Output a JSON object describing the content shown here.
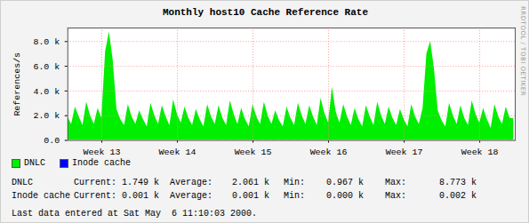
{
  "chart_data": {
    "type": "area",
    "title": "Monthly host10 Cache Reference Rate",
    "y_label": "References/s",
    "watermark": "RRDTOOL / TOBI OETIKER",
    "footer": "Last data entered at Sat May  6 11:10:03 2000.",
    "x": [
      13.05,
      13.1,
      13.15,
      13.2,
      13.25,
      13.3,
      13.35,
      13.4,
      13.45,
      13.5,
      13.55,
      13.6,
      13.65,
      13.7,
      13.75,
      13.8,
      13.85,
      13.9,
      13.95,
      14,
      14.05,
      14.1,
      14.15,
      14.2,
      14.25,
      14.3,
      14.35,
      14.4,
      14.45,
      14.5,
      14.55,
      14.6,
      14.65,
      14.7,
      14.75,
      14.8,
      14.85,
      14.9,
      14.95,
      15,
      15.05,
      15.1,
      15.15,
      15.2,
      15.25,
      15.3,
      15.35,
      15.4,
      15.45,
      15.5,
      15.55,
      15.6,
      15.65,
      15.7,
      15.75,
      15.8,
      15.85,
      15.9,
      15.95,
      16,
      16.05,
      16.1,
      16.15,
      16.2,
      16.25,
      16.3,
      16.35,
      16.4,
      16.45,
      16.5,
      16.55,
      16.6,
      16.65,
      16.7,
      16.75,
      16.8,
      16.85,
      16.9,
      16.95,
      17,
      17.05,
      17.1,
      17.15,
      17.2,
      17.25,
      17.3,
      17.35,
      17.4,
      17.45,
      17.5,
      17.55,
      17.6,
      17.65,
      17.7,
      17.75,
      17.8,
      17.85,
      17.9,
      17.95,
      18,
      18.05,
      18.1,
      18.15,
      18.2,
      18.25,
      18.3,
      18.35,
      18.4,
      18.45,
      18.5,
      18.55,
      18.6,
      18.65,
      18.7,
      18.75,
      18.8,
      18.85,
      18.9,
      18.95
    ],
    "series": [
      {
        "name": "DNLC",
        "color": "#00ee00",
        "values": [
          1900,
          1300,
          2700,
          1900,
          1200,
          3100,
          2000,
          1300,
          2600,
          1800,
          7200,
          8773,
          6500,
          2500,
          1700,
          1200,
          2900,
          1900,
          1300,
          2400,
          1700,
          1100,
          3000,
          2000,
          1300,
          2800,
          1900,
          1200,
          3300,
          2100,
          1400,
          2700,
          1800,
          1200,
          2500,
          1700,
          1100,
          2900,
          1900,
          1300,
          2800,
          1800,
          1200,
          3200,
          2100,
          1300,
          2600,
          1700,
          1100,
          2900,
          1900,
          1300,
          3100,
          2000,
          1300,
          2400,
          1600,
          1100,
          2700,
          1800,
          1200,
          3000,
          2000,
          1300,
          2800,
          1900,
          1200,
          3400,
          2200,
          1400,
          4300,
          2300,
          1400,
          2900,
          1900,
          1200,
          2600,
          1700,
          1100,
          2800,
          1900,
          1200,
          3100,
          2000,
          1300,
          2700,
          1800,
          1200,
          2500,
          1700,
          1100,
          2900,
          1900,
          1300,
          2600,
          7000,
          8000,
          5800,
          2400,
          1600,
          1100,
          3000,
          2000,
          1300,
          2800,
          1800,
          1200,
          3200,
          2100,
          1400,
          2600,
          1700,
          967,
          2900,
          1900,
          1300,
          2700,
          1800,
          1749
        ]
      },
      {
        "name": "Inode cache",
        "color": "#0000ff",
        "values": [
          1,
          1,
          1,
          1,
          1,
          1,
          1,
          1,
          1,
          1,
          2,
          2,
          1,
          1,
          1,
          1,
          1,
          1,
          1,
          1,
          1,
          1,
          1,
          1,
          1,
          1,
          1,
          1,
          1,
          1,
          1,
          1,
          1,
          1,
          1,
          1,
          0,
          1,
          1,
          1,
          1,
          1,
          1,
          1,
          1,
          1,
          1,
          1,
          1,
          1,
          1,
          1,
          1,
          1,
          1,
          1,
          1,
          1,
          1,
          1,
          1,
          1,
          1,
          1,
          1,
          1,
          1,
          1,
          1,
          1,
          1,
          1,
          1,
          1,
          1,
          1,
          1,
          1,
          1,
          1,
          1,
          1,
          1,
          1,
          1,
          1,
          1,
          1,
          1,
          1,
          1,
          1,
          1,
          1,
          1,
          2,
          2,
          1,
          1,
          1,
          1,
          1,
          1,
          1,
          1,
          1,
          1,
          1,
          1,
          1,
          1,
          1,
          0,
          1,
          1,
          1,
          1,
          1,
          1
        ]
      }
    ],
    "xlim": [
      13.05,
      18.97
    ],
    "xticks": [
      {
        "value": 13.5,
        "label": "Week 13"
      },
      {
        "value": 14.5,
        "label": "Week 14"
      },
      {
        "value": 15.5,
        "label": "Week 15"
      },
      {
        "value": 16.5,
        "label": "Week 16"
      },
      {
        "value": 17.5,
        "label": "Week 17"
      },
      {
        "value": 18.5,
        "label": "Week 18"
      }
    ],
    "ylim": [
      0,
      9100
    ],
    "yticks": [
      {
        "value": 0,
        "label": "0.0"
      },
      {
        "value": 2000,
        "label": "2.0 k"
      },
      {
        "value": 4000,
        "label": "4.0 k"
      },
      {
        "value": 6000,
        "label": "6.0 k"
      },
      {
        "value": 8000,
        "label": "8.0 k"
      }
    ],
    "grid": true,
    "legend": "bottom-left",
    "stats": {
      "labels": [
        "Current:",
        "Average:",
        "Min:",
        "Max:"
      ],
      "rows": [
        {
          "name": "DNLC",
          "values": [
            "1.749 k",
            "2.061 k",
            "0.967 k",
            "8.773 k"
          ]
        },
        {
          "name": "Inode cache",
          "values": [
            "0.001 k",
            "0.001 k",
            "0.000 k",
            "0.002 k"
          ]
        }
      ]
    }
  }
}
